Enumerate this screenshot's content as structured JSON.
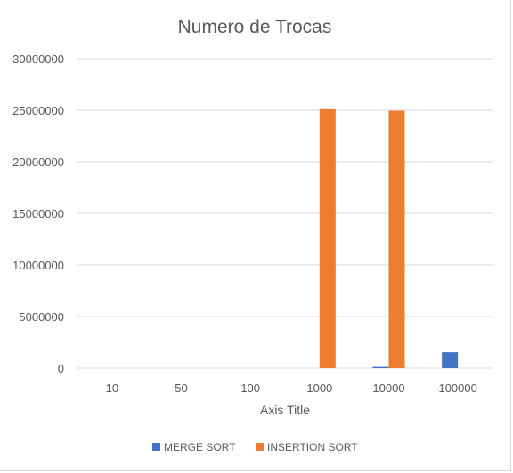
{
  "chart_data": {
    "type": "bar",
    "title": "Numero de Trocas",
    "xlabel": "Axis Title",
    "ylabel": "",
    "categories": [
      "10",
      "50",
      "100",
      "1000",
      "10000",
      "100000"
    ],
    "series": [
      {
        "name": "MERGE SORT",
        "color": "#4472c4",
        "values": [
          0,
          0,
          0,
          0,
          120000,
          1540000
        ]
      },
      {
        "name": "INSERTION SORT",
        "color": "#ed7d31",
        "values": [
          0,
          0,
          0,
          25100000,
          24950000,
          0
        ]
      }
    ],
    "ylim": [
      0,
      30000000
    ],
    "yticks": [
      "0",
      "5000000",
      "10000000",
      "15000000",
      "20000000",
      "25000000",
      "30000000"
    ],
    "grid": true,
    "legend_position": "bottom"
  }
}
